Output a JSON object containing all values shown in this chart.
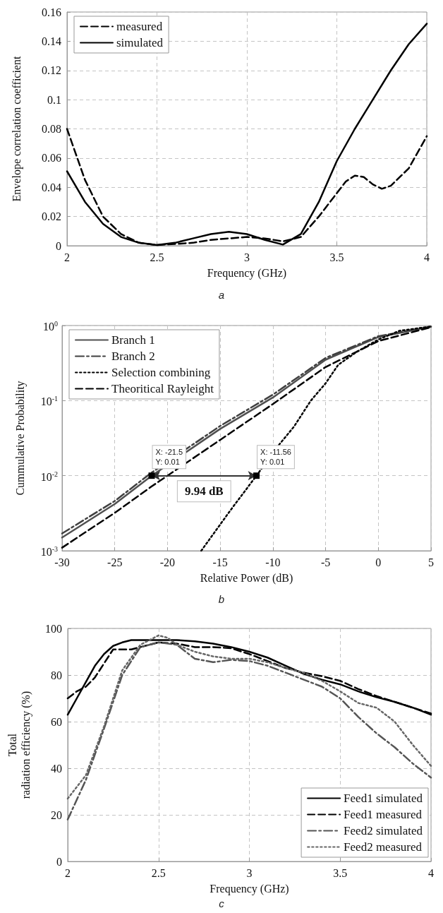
{
  "chart_data": [
    {
      "type": "line",
      "subtitle": "a",
      "xlabel": "Frequency (GHz)",
      "ylabel": "Envelope correlation coefficient",
      "xlim": [
        2,
        4
      ],
      "xticks": [
        2,
        2.5,
        3,
        3.5,
        4
      ],
      "ylim": [
        0,
        0.16
      ],
      "yticks": [
        0,
        0.02,
        0.04,
        0.06,
        0.08,
        0.1,
        0.12,
        0.14,
        0.16
      ],
      "grid": true,
      "legend": "top left",
      "series": [
        {
          "name": "measured",
          "color": "#000000",
          "line_style": "dashed",
          "x": [
            2.0,
            2.1,
            2.2,
            2.3,
            2.4,
            2.5,
            2.6,
            2.7,
            2.8,
            2.9,
            3.0,
            3.1,
            3.2,
            3.3,
            3.4,
            3.5,
            3.55,
            3.6,
            3.65,
            3.7,
            3.75,
            3.8,
            3.9,
            4.0
          ],
          "values": [
            0.08,
            0.045,
            0.02,
            0.008,
            0.002,
            0.0005,
            0.0012,
            0.002,
            0.004,
            0.005,
            0.006,
            0.005,
            0.003,
            0.006,
            0.02,
            0.036,
            0.044,
            0.048,
            0.047,
            0.042,
            0.039,
            0.041,
            0.053,
            0.075
          ]
        },
        {
          "name": "simulated",
          "color": "#000000",
          "line_style": "solid",
          "x": [
            2.0,
            2.1,
            2.2,
            2.3,
            2.4,
            2.5,
            2.6,
            2.7,
            2.8,
            2.9,
            3.0,
            3.1,
            3.2,
            3.3,
            3.4,
            3.5,
            3.6,
            3.7,
            3.8,
            3.9,
            4.0
          ],
          "values": [
            0.051,
            0.03,
            0.015,
            0.006,
            0.002,
            0.0005,
            0.002,
            0.005,
            0.008,
            0.0095,
            0.008,
            0.004,
            0.0008,
            0.008,
            0.03,
            0.058,
            0.08,
            0.1,
            0.12,
            0.138,
            0.152
          ]
        }
      ]
    },
    {
      "type": "line",
      "subtitle": "b",
      "xlabel": "Relative Power (dB)",
      "ylabel": "Cummulative Probability",
      "xlim": [
        -30,
        5
      ],
      "xticks": [
        -30,
        -25,
        -20,
        -15,
        -10,
        -5,
        0,
        5
      ],
      "ylim": [
        0.001,
        1
      ],
      "yticks": [
        {
          "value": 0.001,
          "label": "10$^{-3}$"
        },
        {
          "value": 0.01,
          "label": "10$^{-2}$"
        },
        {
          "value": 0.1,
          "label": "10$^{-1}$"
        },
        {
          "value": 1,
          "label": "10$^{0}$"
        }
      ],
      "log": "y",
      "grid": true,
      "legend": "top left",
      "annotations": [
        {
          "text": "X: -21.5\nY: 0.01",
          "x": -21.5,
          "y": 0.01
        },
        {
          "text": "X: -11.56\nY: 0.01",
          "x": -11.56,
          "y": 0.01
        },
        "9.94 dB"
      ],
      "series": [
        {
          "name": "Branch 1",
          "color": "#505050",
          "line_style": "solid",
          "x": [
            -30,
            -25,
            -21.5,
            -15,
            -10,
            -5,
            0,
            5
          ],
          "values": [
            0.0015,
            0.0042,
            0.01,
            0.042,
            0.11,
            0.35,
            0.7,
            0.96
          ]
        },
        {
          "name": "Branch 2",
          "color": "#404040",
          "line_style": "dashdot",
          "x": [
            -30,
            -25,
            -21.5,
            -15,
            -10,
            -5,
            0,
            5
          ],
          "values": [
            0.0017,
            0.0046,
            0.011,
            0.046,
            0.12,
            0.37,
            0.72,
            0.97
          ]
        },
        {
          "name": "Selection combining",
          "color": "#000000",
          "line_style": "dotted",
          "x": [
            -16.8,
            -14,
            -11.56,
            -9.4,
            -8,
            -6.4,
            -5,
            -3.8,
            -2,
            0,
            2,
            5
          ],
          "values": [
            0.001,
            0.0035,
            0.01,
            0.026,
            0.045,
            0.1,
            0.17,
            0.3,
            0.45,
            0.65,
            0.85,
            0.97
          ]
        },
        {
          "name": "Theoritical Rayleight",
          "color": "#000000",
          "line_style": "dashed",
          "x": [
            -30,
            -25,
            -21.5,
            -20,
            -15,
            -10,
            -5,
            0,
            5
          ],
          "values": [
            0.0011,
            0.0032,
            0.0072,
            0.01,
            0.03,
            0.09,
            0.28,
            0.62,
            0.95
          ]
        }
      ]
    },
    {
      "type": "line",
      "subtitle": "c",
      "xlabel": "Frequency (GHz)",
      "ylabel": "Total\nradiation efficiency (%)",
      "xlim": [
        2,
        4
      ],
      "xticks": [
        2,
        2.5,
        3,
        3.5,
        4
      ],
      "ylim": [
        0,
        100
      ],
      "yticks": [
        0,
        20,
        40,
        60,
        80,
        100
      ],
      "grid": true,
      "legend": "bottom right",
      "series": [
        {
          "name": "Feed1 simulated",
          "color": "#000000",
          "line_style": "solid",
          "x": [
            2.0,
            2.05,
            2.1,
            2.15,
            2.2,
            2.25,
            2.3,
            2.35,
            2.5,
            2.6,
            2.7,
            2.8,
            2.9,
            3.0,
            3.1,
            3.2,
            3.3,
            3.4,
            3.5,
            3.6,
            3.7,
            3.8,
            3.9,
            4.0
          ],
          "values": [
            63,
            70,
            77,
            84,
            89,
            92.5,
            94,
            95,
            95,
            95,
            94.5,
            93.5,
            92,
            90,
            87.5,
            84,
            80.5,
            78,
            76,
            73,
            70.5,
            68.5,
            66,
            63
          ]
        },
        {
          "name": "Feed1 measured",
          "color": "#000000",
          "line_style": "dashed",
          "x": [
            2.0,
            2.05,
            2.1,
            2.15,
            2.2,
            2.25,
            2.3,
            2.35,
            2.4,
            2.5,
            2.6,
            2.7,
            2.8,
            2.9,
            3.0,
            3.1,
            3.2,
            3.3,
            3.4,
            3.5,
            3.6,
            3.7,
            3.8,
            3.9,
            4.0
          ],
          "values": [
            70,
            73,
            75,
            79,
            85,
            91,
            91,
            91,
            92,
            94,
            93.5,
            92,
            92,
            91.5,
            89,
            86,
            83,
            81,
            79.5,
            77.5,
            74,
            71,
            68.5,
            66,
            63.5
          ]
        },
        {
          "name": "Feed2 simulated",
          "color": "#555555",
          "line_style": "dashdot",
          "x": [
            2.0,
            2.1,
            2.2,
            2.3,
            2.4,
            2.5,
            2.6,
            2.7,
            2.8,
            2.9,
            3.0,
            3.1,
            3.2,
            3.3,
            3.4,
            3.5,
            3.6,
            3.7,
            3.8,
            3.9,
            4.0
          ],
          "values": [
            18,
            35,
            57,
            80,
            92,
            94,
            93,
            87,
            85.5,
            86.5,
            86,
            84,
            81,
            78,
            75,
            70,
            62,
            55,
            49,
            42,
            36
          ]
        },
        {
          "name": "Feed2 measured",
          "color": "#666666",
          "line_style": "dotted",
          "x": [
            2.0,
            2.1,
            2.2,
            2.3,
            2.4,
            2.5,
            2.55,
            2.6,
            2.7,
            2.8,
            2.9,
            3.0,
            3.1,
            3.2,
            3.3,
            3.4,
            3.5,
            3.6,
            3.7,
            3.8,
            3.9,
            4.0
          ],
          "values": [
            27,
            37,
            58,
            82,
            93,
            97,
            96,
            93,
            90,
            88,
            87,
            87,
            85.5,
            83,
            81,
            77.5,
            73,
            68,
            66,
            60,
            50,
            41
          ]
        }
      ]
    }
  ]
}
